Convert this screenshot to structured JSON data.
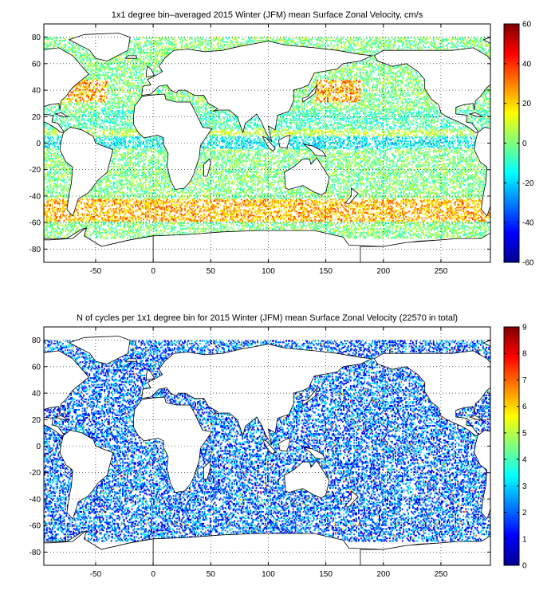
{
  "chart_data": [
    {
      "type": "heatmap",
      "title": "1x1 degree bin–averaged 2015 Winter (JFM) mean Surface Zonal Velocity, cm/s",
      "xlabel": "",
      "ylabel": "",
      "xlim": [
        -95,
        293
      ],
      "ylim": [
        -90,
        90
      ],
      "xticks": [
        -50,
        0,
        50,
        100,
        150,
        200,
        250
      ],
      "yticks": [
        -80,
        -60,
        -40,
        -20,
        0,
        20,
        40,
        60,
        80
      ],
      "grid": true,
      "grid_style": "dotted",
      "colorbar": {
        "min": -60,
        "max": 60,
        "ticks": [
          -60,
          -40,
          -20,
          0,
          20,
          40,
          60
        ],
        "colormap": "jet"
      },
      "data_description": "scattered 1x1 degree bins over ocean areas; values mostly -20..20 cm/s with strong positive (eastward) bands near 45S-55S and in western boundary currents",
      "coastline_color": "#000000"
    },
    {
      "type": "heatmap",
      "title": "N of cycles per 1x1 degree bin for 2015 Winter (JFM) mean Surface Zonal Velocity (22570 in total)",
      "xlabel": "",
      "ylabel": "",
      "xlim": [
        -95,
        293
      ],
      "ylim": [
        -90,
        90
      ],
      "xticks": [
        -50,
        0,
        50,
        100,
        150,
        200,
        250
      ],
      "yticks": [
        -80,
        -60,
        -40,
        -20,
        0,
        20,
        40,
        60,
        80
      ],
      "grid": true,
      "grid_style": "dotted",
      "colorbar": {
        "min": 0,
        "max": 9,
        "ticks": [
          0,
          1,
          2,
          3,
          4,
          5,
          6,
          7,
          8,
          9
        ],
        "colormap": "jet"
      },
      "total_cycles": 22570,
      "data_description": "scattered 1x1 degree bins; most bins have 1-3 cycles, a few coastal bins reach 6-9",
      "coastline_color": "#000000"
    }
  ],
  "colors": {
    "axes": "#000000",
    "grid": "#000000",
    "background": "#ffffff"
  }
}
